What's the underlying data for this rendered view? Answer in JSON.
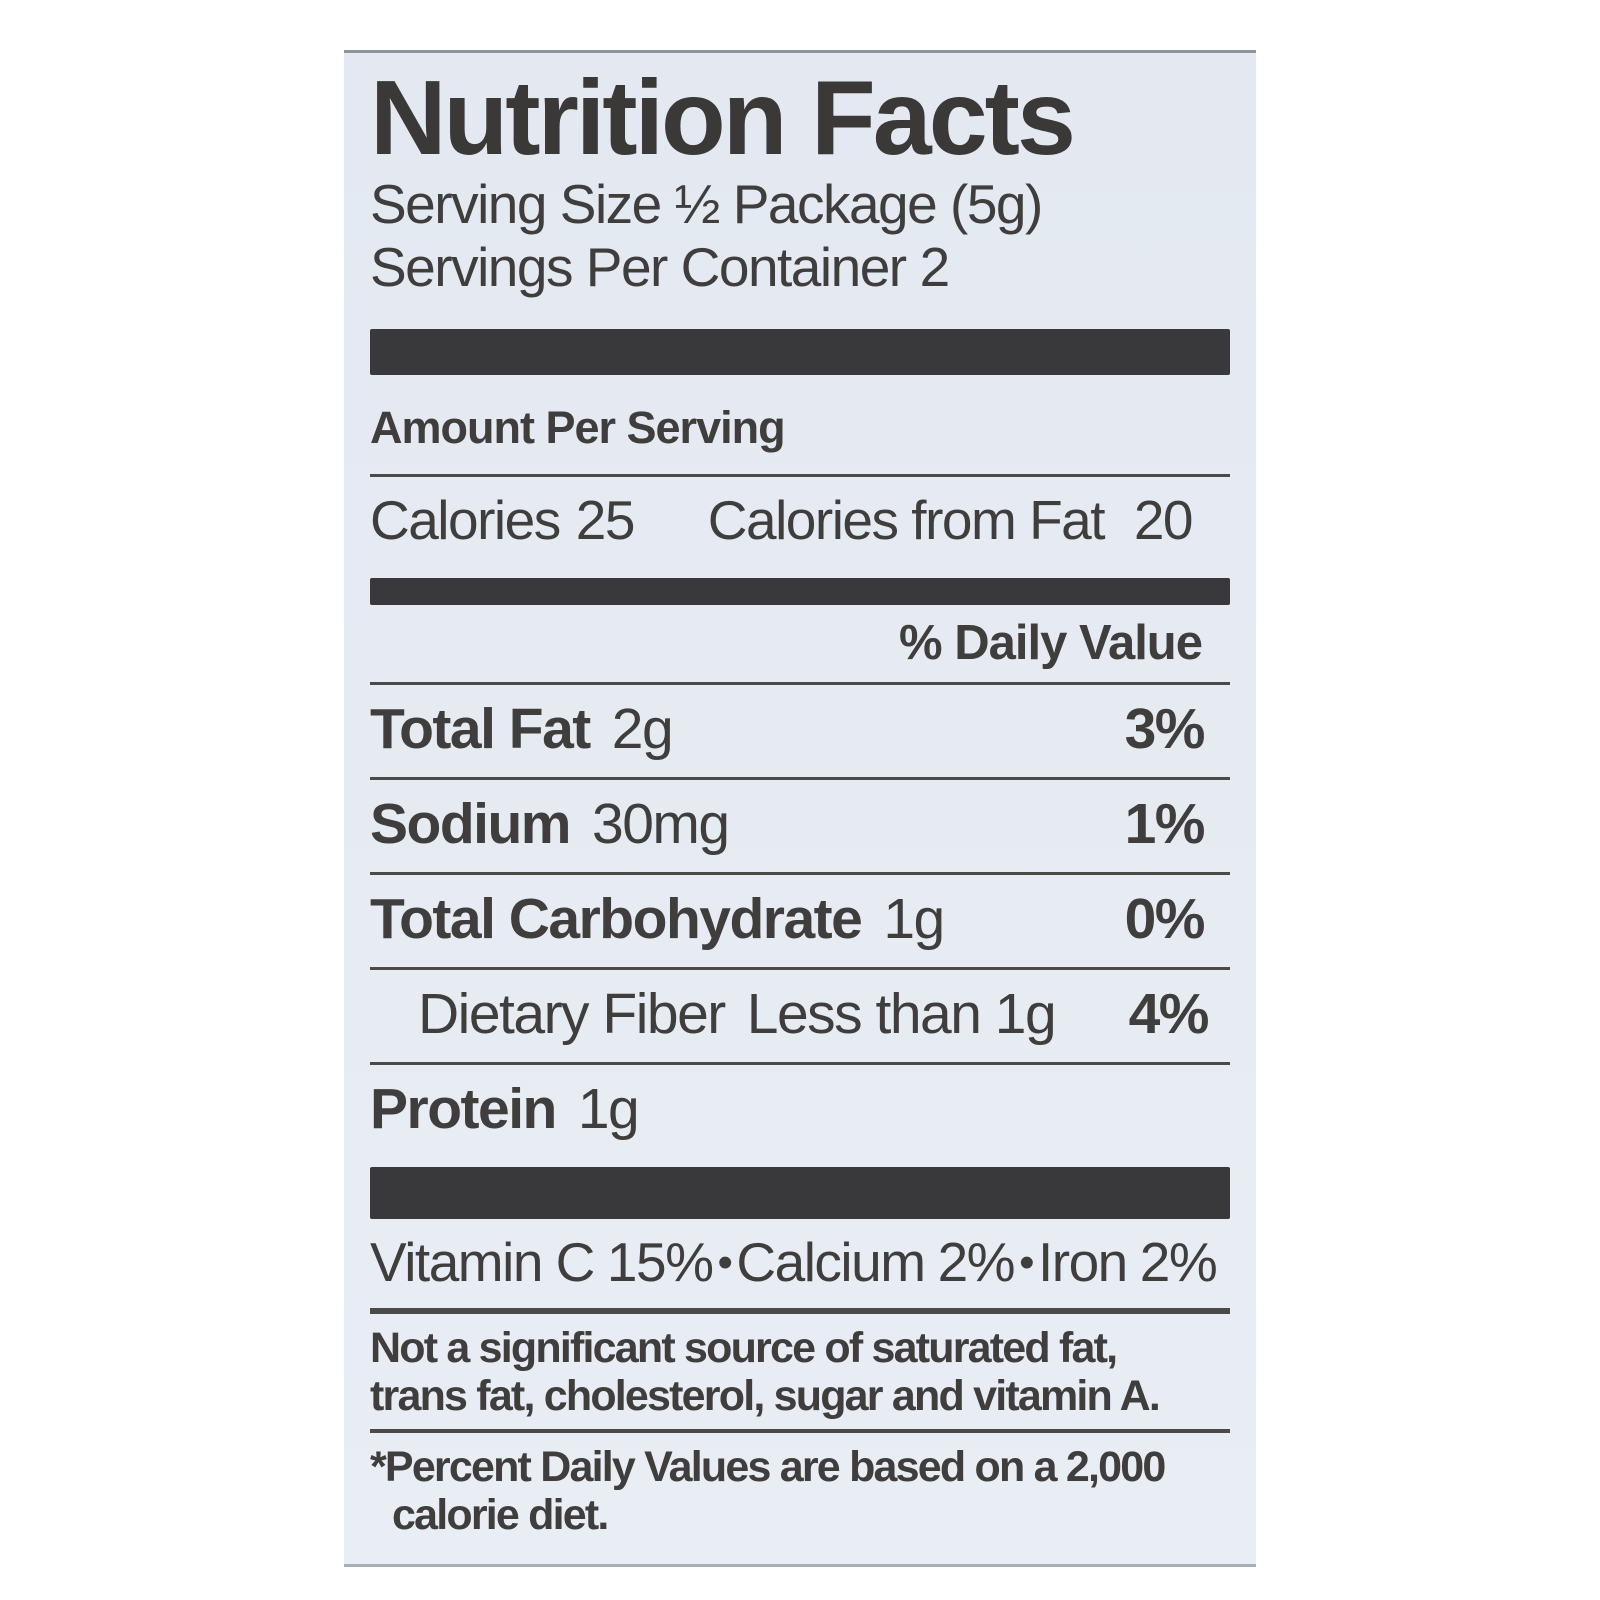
{
  "colors": {
    "label_background": "#e4e9f1",
    "bar": "#39393b",
    "text": "#403e3d",
    "rule": "#4c4a49"
  },
  "label": {
    "title": "Nutrition Facts",
    "serving_size": "Serving Size ½ Package (5g)",
    "servings_per_container_label": "Servings Per Container",
    "servings_per_container_value": "2",
    "amount_per_serving": "Amount Per Serving",
    "calories_label": "Calories",
    "calories_value": "25",
    "calories_from_fat_label": "Calories from Fat",
    "calories_from_fat_value": "20",
    "daily_value_header": "% Daily Value",
    "nutrients": [
      {
        "name": "Total Fat",
        "amount": "2g",
        "dv": "3%"
      },
      {
        "name": "Sodium",
        "amount": "30mg",
        "dv": "1%"
      },
      {
        "name": "Total Carbohydrate",
        "amount": "1g",
        "dv": "0%"
      },
      {
        "name": "Dietary Fiber",
        "amount": "Less than 1g",
        "dv": "4%"
      },
      {
        "name": "Protein",
        "amount": "1g",
        "dv": ""
      }
    ],
    "vitamins": [
      {
        "name": "Vitamin C",
        "value": "15%"
      },
      {
        "name": "Calcium",
        "value": "2%"
      },
      {
        "name": "Iron",
        "value": "2%"
      }
    ],
    "vitamin_bullet": "•",
    "not_significant_lines": [
      "Not a significant source of saturated fat,",
      "trans fat, cholesterol, sugar and vitamin A."
    ],
    "footnote_lines": [
      "*Percent Daily Values are based on a 2,000",
      "calorie diet."
    ]
  }
}
